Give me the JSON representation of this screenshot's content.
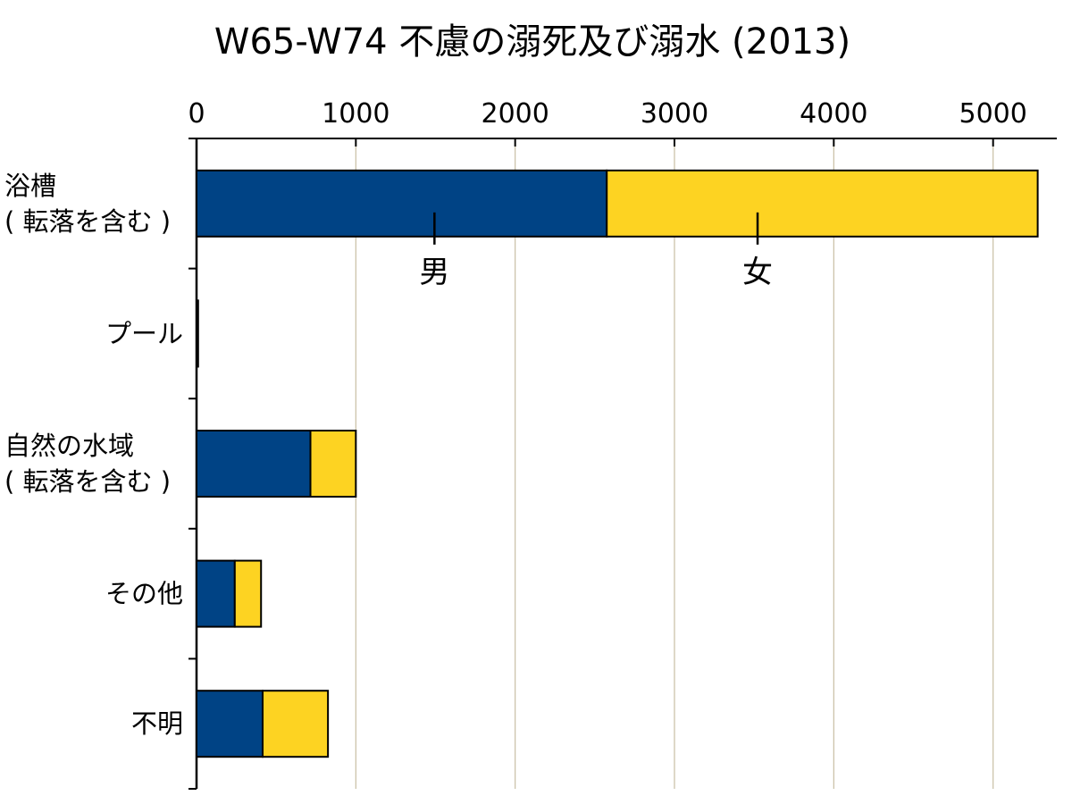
{
  "chart_data": {
    "type": "bar",
    "orientation": "horizontal",
    "stacked": true,
    "title": "W65-W74 不慮の溺死及び溺水 (2013)",
    "xlabel": "",
    "ylabel": "",
    "xlim": [
      0,
      5400
    ],
    "x_ticks": [
      0,
      1000,
      2000,
      3000,
      4000,
      5000
    ],
    "grid": true,
    "legend": "inline labels on first bar",
    "categories": [
      [
        "浴槽",
        "( 転落を含む )"
      ],
      [
        "プール"
      ],
      [
        "自然の水域",
        "( 転落を含む )"
      ],
      [
        "その他"
      ],
      [
        "不明"
      ]
    ],
    "series": [
      {
        "name": "男",
        "color": "#004385",
        "values": [
          2575,
          7,
          715,
          240,
          415
        ]
      },
      {
        "name": "女",
        "color": "#FDD322",
        "values": [
          2705,
          3,
          285,
          165,
          410
        ]
      }
    ],
    "inline_label_category_index": 0
  }
}
